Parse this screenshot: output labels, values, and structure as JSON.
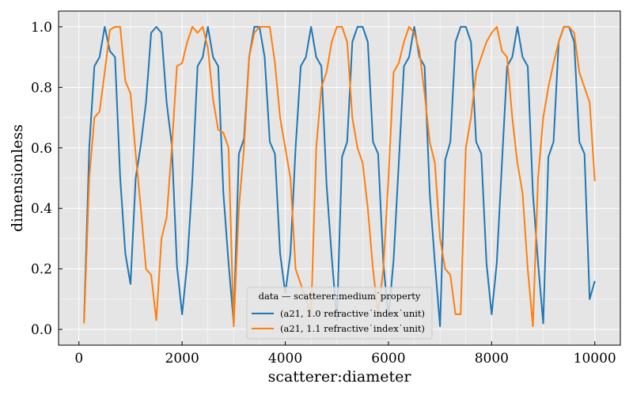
{
  "chart_data": {
    "type": "line",
    "xlabel": "scatterer:diameter",
    "ylabel": "dimensionless",
    "x": [
      100,
      200,
      300,
      400,
      500,
      600,
      700,
      800,
      900,
      1000,
      1100,
      1200,
      1300,
      1400,
      1500,
      1600,
      1700,
      1800,
      1900,
      2000,
      2100,
      2200,
      2300,
      2400,
      2500,
      2600,
      2700,
      2800,
      2900,
      3000,
      3100,
      3200,
      3300,
      3400,
      3500,
      3600,
      3700,
      3800,
      3900,
      4000,
      4100,
      4200,
      4300,
      4400,
      4500,
      4600,
      4700,
      4800,
      4900,
      5000,
      5100,
      5200,
      5300,
      5400,
      5500,
      5600,
      5700,
      5800,
      5900,
      6000,
      6100,
      6200,
      6300,
      6400,
      6500,
      6600,
      6700,
      6800,
      6900,
      7000,
      7100,
      7200,
      7300,
      7400,
      7500,
      7600,
      7700,
      7800,
      7900,
      8000,
      8100,
      8200,
      8300,
      8400,
      8500,
      8600,
      8700,
      8800,
      8900,
      9000,
      9100,
      9200,
      9300,
      9400,
      9500,
      9600,
      9700,
      9800,
      9900,
      10000
    ],
    "series": [
      {
        "name": "(a21, 1.0 refractive˙index˙unit)",
        "color": "#1f77b4",
        "values": [
          0.03,
          0.6,
          0.87,
          0.9,
          1.0,
          0.92,
          0.9,
          0.5,
          0.25,
          0.15,
          0.5,
          0.61,
          0.75,
          0.98,
          1.0,
          0.98,
          0.75,
          0.61,
          0.21,
          0.05,
          0.22,
          0.5,
          0.87,
          0.9,
          1.0,
          0.9,
          0.87,
          0.45,
          0.22,
          0.02,
          0.58,
          0.63,
          0.9,
          1.0,
          1.0,
          0.9,
          0.62,
          0.58,
          0.25,
          0.12,
          0.25,
          0.6,
          0.87,
          0.9,
          1.0,
          0.9,
          0.87,
          0.48,
          0.24,
          0.03,
          0.57,
          0.62,
          0.95,
          1.0,
          1.0,
          0.95,
          0.62,
          0.58,
          0.22,
          0.04,
          0.23,
          0.55,
          0.87,
          0.9,
          1.0,
          0.9,
          0.87,
          0.45,
          0.22,
          0.01,
          0.56,
          0.62,
          0.95,
          1.0,
          1.0,
          0.95,
          0.62,
          0.58,
          0.22,
          0.05,
          0.22,
          0.55,
          0.87,
          0.9,
          1.0,
          0.9,
          0.87,
          0.45,
          0.22,
          0.02,
          0.57,
          0.62,
          0.95,
          1.0,
          1.0,
          0.95,
          0.62,
          0.58,
          0.1,
          0.16
        ]
      },
      {
        "name": "(a21, 1.1 refractive˙index˙unit)",
        "color": "#ff7f0e",
        "values": [
          0.02,
          0.5,
          0.7,
          0.72,
          0.85,
          0.99,
          1.0,
          1.0,
          0.82,
          0.78,
          0.58,
          0.4,
          0.2,
          0.18,
          0.03,
          0.3,
          0.37,
          0.6,
          0.87,
          0.88,
          0.95,
          1.0,
          0.98,
          1.0,
          0.93,
          0.76,
          0.66,
          0.65,
          0.6,
          0.01,
          0.4,
          0.6,
          0.9,
          0.98,
          1.0,
          1.0,
          1.0,
          0.88,
          0.7,
          0.6,
          0.5,
          0.2,
          0.15,
          0.1,
          0.05,
          0.6,
          0.8,
          0.85,
          0.95,
          1.0,
          1.0,
          0.95,
          0.7,
          0.6,
          0.55,
          0.4,
          0.2,
          0.05,
          0.2,
          0.5,
          0.85,
          0.88,
          0.95,
          1.0,
          0.98,
          0.92,
          0.78,
          0.62,
          0.55,
          0.3,
          0.2,
          0.18,
          0.05,
          0.05,
          0.6,
          0.7,
          0.85,
          0.9,
          0.95,
          0.98,
          1.0,
          0.92,
          0.9,
          0.7,
          0.55,
          0.45,
          0.2,
          0.01,
          0.5,
          0.7,
          0.8,
          0.88,
          0.95,
          1.0,
          1.0,
          0.98,
          0.85,
          0.8,
          0.75,
          0.49
        ]
      }
    ],
    "xlim": [
      -395,
      10495
    ],
    "ylim": [
      -0.052,
      1.052
    ],
    "xticks": [
      0,
      2000,
      4000,
      6000,
      8000,
      10000
    ],
    "yticks": [
      {
        "value": 0,
        "label": "0.0"
      },
      0.2,
      0.4,
      0.6,
      0.8,
      {
        "value": 1,
        "label": "1.0"
      }
    ],
    "grid": true,
    "legend_title": "data — scatterer:medium˙property",
    "legend_loc": "lower center"
  }
}
